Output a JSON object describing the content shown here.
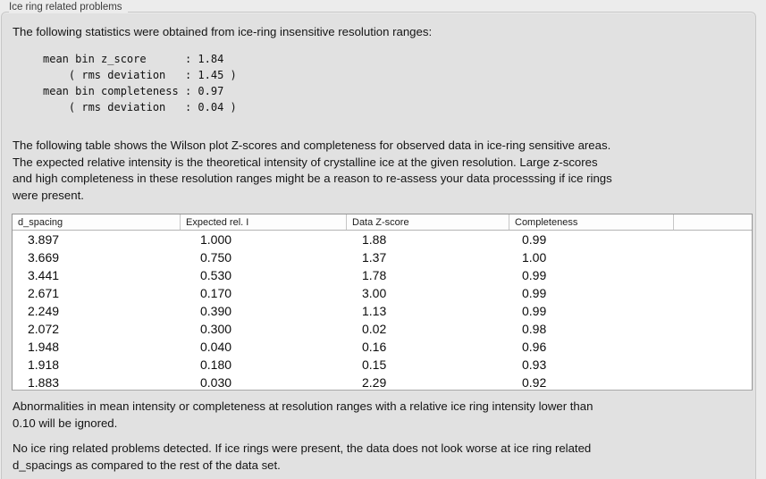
{
  "colors": {
    "page_bg": "#ececec",
    "groupbox_bg": "#e1e1e1",
    "groupbox_border": "#c7c7c7",
    "table_bg": "#ffffff",
    "table_border": "#969696",
    "text": "#141414"
  },
  "groupbox": {
    "title": "Ice ring related problems"
  },
  "stats": {
    "intro": "The following statistics were obtained from ice-ring insensitive resolution ranges:",
    "block": "mean bin z_score      : 1.84\n    ( rms deviation   : 1.45 )\nmean bin completeness : 0.97\n    ( rms deviation   : 0.04 )",
    "mean_bin_z_score": "1.84",
    "z_score_rms_deviation": "1.45",
    "mean_bin_completeness": "0.97",
    "completeness_rms_deviation": "0.04"
  },
  "table_intro": "The following table shows the Wilson plot Z-scores and completeness for observed data in ice-ring sensitive areas.\nThe expected relative intensity is the theoretical intensity of crystalline ice at the given resolution. Large z-scores\nand high completeness in these resolution ranges might be a reason to re-assess your data processsing if ice rings\nwere present.",
  "table": {
    "headers": [
      "d_spacing",
      "Expected rel. I",
      "Data Z-score",
      "Completeness",
      ""
    ],
    "rows": [
      [
        "3.897",
        "1.000",
        "1.88",
        "0.99"
      ],
      [
        "3.669",
        "0.750",
        "1.37",
        "1.00"
      ],
      [
        "3.441",
        "0.530",
        "1.78",
        "0.99"
      ],
      [
        "2.671",
        "0.170",
        "3.00",
        "0.99"
      ],
      [
        "2.249",
        "0.390",
        "1.13",
        "0.99"
      ],
      [
        "2.072",
        "0.300",
        "0.02",
        "0.98"
      ],
      [
        "1.948",
        "0.040",
        "0.16",
        "0.96"
      ],
      [
        "1.918",
        "0.180",
        "0.15",
        "0.93"
      ],
      [
        "1.883",
        "0.030",
        "2.29",
        "0.92"
      ]
    ]
  },
  "ignore_note": "Abnormalities in mean intensity or completeness at resolution ranges with a relative ice ring intensity lower than\n0.10 will be ignored.",
  "verdict": "No ice ring related problems detected. If ice rings were present, the data does not look worse at ice ring related\nd_spacings as compared to the rest of the data set."
}
